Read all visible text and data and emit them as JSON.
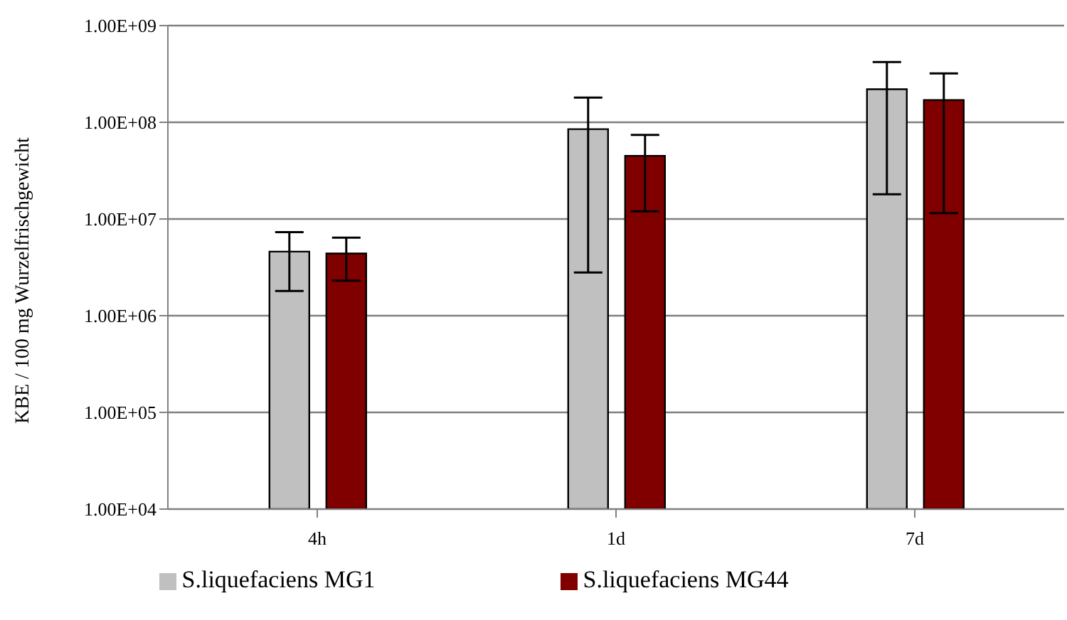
{
  "chart_data": {
    "type": "bar",
    "ylabel": "KBE / 100 mg Wurzelfrischgewicht",
    "categories": [
      "4h",
      "1d",
      "7d"
    ],
    "log": true,
    "grid": "y",
    "legend": "bottom",
    "ylim": [
      10000,
      1000000000
    ],
    "yticks": [
      {
        "value": 10000,
        "label": "1.00E+04"
      },
      {
        "value": 100000,
        "label": "1.00E+05"
      },
      {
        "value": 1000000,
        "label": "1.00E+06"
      },
      {
        "value": 10000000,
        "label": "1.00E+07"
      },
      {
        "value": 100000000,
        "label": "1.00E+08"
      },
      {
        "value": 1000000000,
        "label": "1.00E+09"
      }
    ],
    "series": [
      {
        "name": "S.liquefaciens MG1",
        "color": "#c0c0c0",
        "values": [
          4600000,
          85000000,
          220000000
        ],
        "errors": [
          [
            1800000,
            7300000
          ],
          [
            2800000,
            180000000
          ],
          [
            18000000,
            420000000
          ]
        ]
      },
      {
        "name": "S.liquefaciens MG44",
        "color": "#800000",
        "values": [
          4400000,
          45000000,
          170000000
        ],
        "errors": [
          [
            2300000,
            6400000
          ],
          [
            12000000,
            74000000
          ],
          [
            11500000,
            320000000
          ]
        ]
      }
    ]
  }
}
